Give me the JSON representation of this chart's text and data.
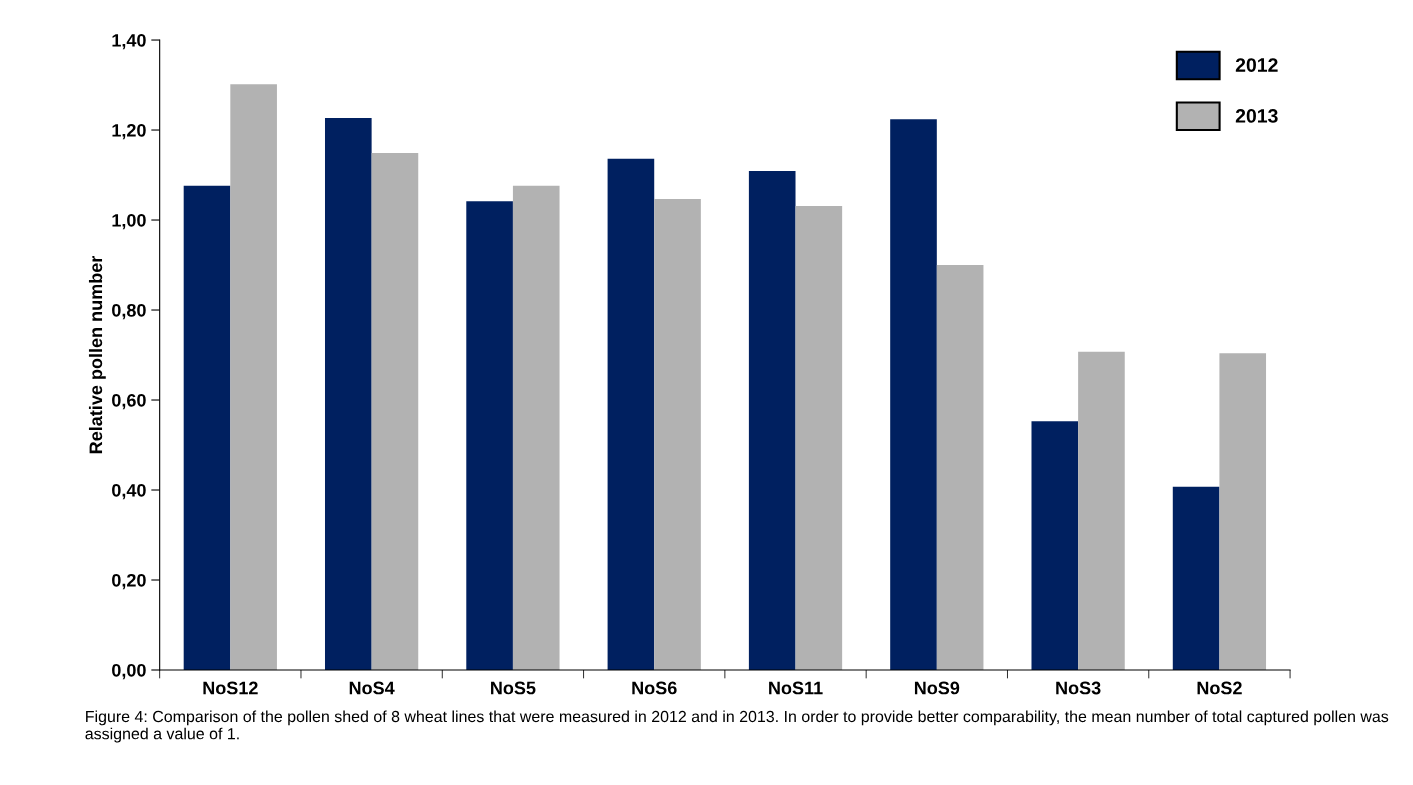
{
  "chart_data": {
    "type": "bar",
    "ylabel": "Relative pollen number",
    "categories": [
      "NoS12",
      "NoS4",
      "NoS5",
      "NoS6",
      "NoS11",
      "NoS9",
      "NoS3",
      "NoS2"
    ],
    "series": [
      {
        "name": "2012",
        "color": "#002060",
        "values": [
          1.076,
          1.227,
          1.042,
          1.136,
          1.109,
          1.224,
          0.553,
          0.407
        ]
      },
      {
        "name": "2013",
        "color": "#b2b2b2",
        "values": [
          1.302,
          1.149,
          1.076,
          1.047,
          1.031,
          0.9,
          0.707,
          0.704
        ]
      }
    ],
    "ylim": [
      0,
      1.4
    ],
    "yticks": [
      {
        "value": 0,
        "label": "0,00"
      },
      {
        "value": 0.2,
        "label": "0,20"
      },
      {
        "value": 0.4,
        "label": "0,40"
      },
      {
        "value": 0.6,
        "label": "0,60"
      },
      {
        "value": 0.8,
        "label": "0,80"
      },
      {
        "value": 1.0,
        "label": "1,00"
      },
      {
        "value": 1.2,
        "label": "1,20"
      },
      {
        "value": 1.4,
        "label": "1,40"
      }
    ],
    "grid": false,
    "legend": "top right",
    "annotations": [
      "Figure 4: Comparison of the pollen shed of 8 wheat lines that were measured in 2012 and in 2013. In order to provide better comparability, the mean number of total captured pollen was assigned a value of 1."
    ]
  }
}
